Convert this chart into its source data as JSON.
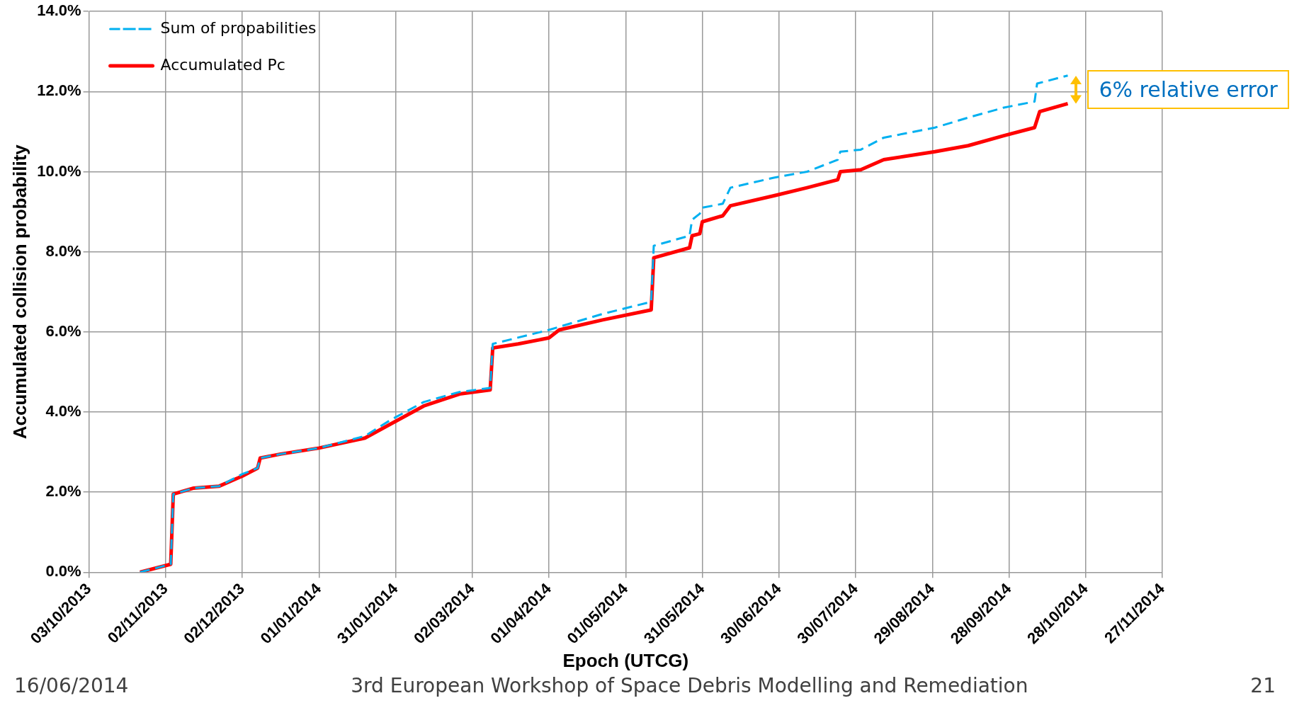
{
  "chart_data": {
    "type": "line",
    "xlabel": "Epoch (UTCG)",
    "ylabel": "Accumulated collision probability",
    "xlim": [
      "2013-10-03",
      "2014-11-27"
    ],
    "xticks": [
      {
        "value": "2013-10-03",
        "label": "03/10/2013"
      },
      {
        "value": "2013-11-02",
        "label": "02/11/2013"
      },
      {
        "value": "2013-12-02",
        "label": "02/12/2013"
      },
      {
        "value": "2014-01-01",
        "label": "01/01/2014"
      },
      {
        "value": "2014-01-31",
        "label": "31/01/2014"
      },
      {
        "value": "2014-03-02",
        "label": "02/03/2014"
      },
      {
        "value": "2014-04-01",
        "label": "01/04/2014"
      },
      {
        "value": "2014-05-01",
        "label": "01/05/2014"
      },
      {
        "value": "2014-05-31",
        "label": "31/05/2014"
      },
      {
        "value": "2014-06-30",
        "label": "30/06/2014"
      },
      {
        "value": "2014-07-30",
        "label": "30/07/2014"
      },
      {
        "value": "2014-08-29",
        "label": "29/08/2014"
      },
      {
        "value": "2014-09-28",
        "label": "28/09/2014"
      },
      {
        "value": "2014-10-28",
        "label": "28/10/2014"
      },
      {
        "value": "2014-11-27",
        "label": "27/11/2014"
      }
    ],
    "ylim": [
      0,
      14
    ],
    "yticks": [
      {
        "value": 0,
        "label": "0.0%"
      },
      {
        "value": 2,
        "label": "2.0%"
      },
      {
        "value": 4,
        "label": "4.0%"
      },
      {
        "value": 6,
        "label": "6.0%"
      },
      {
        "value": 8,
        "label": "8.0%"
      },
      {
        "value": 10,
        "label": "10.0%"
      },
      {
        "value": 12,
        "label": "12.0%"
      },
      {
        "value": 14,
        "label": "14.0%"
      }
    ],
    "grid": true,
    "legend": "top left",
    "marker": "none",
    "series": [
      {
        "name": "Accumulated Pc",
        "color": "#ff0000",
        "line_style": "solid",
        "x": [
          "2013-10-23",
          "2013-11-04",
          "2013-11-05",
          "2013-11-13",
          "2013-11-23",
          "2013-12-02",
          "2013-12-08",
          "2013-12-09",
          "2013-12-17",
          "2014-01-01",
          "2014-01-19",
          "2014-01-29",
          "2014-02-11",
          "2014-02-25",
          "2014-03-09",
          "2014-03-10",
          "2014-03-20",
          "2014-04-01",
          "2014-04-05",
          "2014-04-22",
          "2014-05-11",
          "2014-05-12",
          "2014-05-26",
          "2014-05-27",
          "2014-05-30",
          "2014-05-31",
          "2014-06-08",
          "2014-06-11",
          "2014-06-28",
          "2014-07-11",
          "2014-07-23",
          "2014-07-24",
          "2014-08-01",
          "2014-08-10",
          "2014-08-30",
          "2014-09-12",
          "2014-09-26",
          "2014-10-08",
          "2014-10-10",
          "2014-10-21"
        ],
        "values": [
          0,
          0.2,
          1.95,
          2.1,
          2.15,
          2.4,
          2.6,
          2.85,
          2.95,
          3.1,
          3.35,
          3.7,
          4.15,
          4.45,
          4.55,
          5.6,
          5.7,
          5.85,
          6.05,
          6.3,
          6.55,
          7.85,
          8.1,
          8.4,
          8.45,
          8.75,
          8.9,
          9.15,
          9.4,
          9.6,
          9.8,
          10,
          10.05,
          10.3,
          10.5,
          10.65,
          10.9,
          11.1,
          11.5,
          11.7
        ]
      },
      {
        "name": "Sum of propabilities",
        "color": "#00b0f0",
        "line_style": "dashed",
        "x": [
          "2013-10-23",
          "2013-11-04",
          "2013-11-05",
          "2013-11-13",
          "2013-11-23",
          "2013-12-02",
          "2013-12-08",
          "2013-12-09",
          "2013-12-17",
          "2014-01-01",
          "2014-01-19",
          "2014-01-29",
          "2014-02-11",
          "2014-02-25",
          "2014-03-09",
          "2014-03-10",
          "2014-04-01",
          "2014-04-22",
          "2014-05-11",
          "2014-05-12",
          "2014-05-26",
          "2014-05-27",
          "2014-05-30",
          "2014-05-31",
          "2014-06-08",
          "2014-06-11",
          "2014-06-28",
          "2014-07-11",
          "2014-07-23",
          "2014-07-24",
          "2014-08-01",
          "2014-08-10",
          "2014-08-30",
          "2014-09-12",
          "2014-09-26",
          "2014-10-08",
          "2014-10-09",
          "2014-10-21"
        ],
        "values": [
          0,
          0.2,
          1.95,
          2.1,
          2.15,
          2.45,
          2.6,
          2.85,
          2.95,
          3.1,
          3.4,
          3.8,
          4.25,
          4.5,
          4.6,
          5.7,
          6.05,
          6.45,
          6.75,
          8.15,
          8.4,
          8.8,
          8.95,
          9.1,
          9.2,
          9.6,
          9.85,
          10,
          10.3,
          10.5,
          10.55,
          10.85,
          11.1,
          11.35,
          11.6,
          11.75,
          12.2,
          12.4
        ]
      }
    ],
    "annotations": [
      "6% relative error",
      "16/06/2014",
      "3rd European Workshop of Space Debris Modelling and Remediation",
      "21"
    ]
  }
}
